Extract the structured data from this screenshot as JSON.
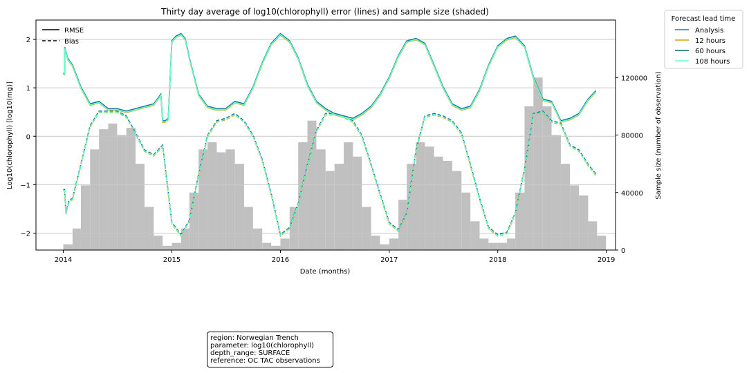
{
  "chart_data": {
    "type": "line",
    "title": "Thirty day average of log10(chlorophyll) error (lines) and sample size (shaded)",
    "xlabel": "Date (months)",
    "ylabel": "Log10(chlorophyll) [log10(mg)]",
    "y2label": "Sample size (number of observation)",
    "xlim": [
      "2013-10-01",
      "2019-02-01"
    ],
    "ylim": [
      -2.35,
      2.4
    ],
    "y2lim": [
      0,
      160000
    ],
    "x_ticks": [
      "2014",
      "2015",
      "2016",
      "2017",
      "2018",
      "2019"
    ],
    "y_ticks": [
      "2",
      "1",
      "0",
      "−1",
      "−2"
    ],
    "y_tick_values": [
      2,
      1,
      0,
      -1,
      -2
    ],
    "y2_ticks": [
      "120000",
      "80000",
      "40000",
      "0"
    ],
    "y2_tick_values": [
      120000,
      80000,
      40000,
      0
    ],
    "grid": "horizontal",
    "style_legend": {
      "position": "upper-left",
      "entries": [
        {
          "label": "RMSE",
          "style": "solid"
        },
        {
          "label": "Bias",
          "style": "dashed"
        }
      ]
    },
    "lead_legend": {
      "title": "Forecast lead time",
      "position": "outside-right",
      "entries": [
        {
          "label": "Analysis",
          "color": "#1f78d0"
        },
        {
          "label": "12 hours",
          "color": "#d4a000"
        },
        {
          "label": "60 hours",
          "color": "#006b6b"
        },
        {
          "label": "108 hours",
          "color": "#66ffcc"
        }
      ]
    },
    "rmse": {
      "x": [
        "2014-01-01",
        "2014-01-05",
        "2014-01-06",
        "2014-01-15",
        "2014-02-01",
        "2014-03-01",
        "2014-04-01",
        "2014-05-01",
        "2014-06-01",
        "2014-07-01",
        "2014-08-01",
        "2014-09-01",
        "2014-10-01",
        "2014-11-01",
        "2014-11-25",
        "2014-12-01",
        "2014-12-10",
        "2014-12-20",
        "2015-01-01",
        "2015-01-15",
        "2015-02-01",
        "2015-02-15",
        "2015-03-01",
        "2015-04-01",
        "2015-05-01",
        "2015-06-01",
        "2015-07-01",
        "2015-08-01",
        "2015-09-01",
        "2015-10-01",
        "2015-11-01",
        "2015-12-01",
        "2016-01-01",
        "2016-02-01",
        "2016-03-01",
        "2016-04-01",
        "2016-05-01",
        "2016-06-01",
        "2016-07-01",
        "2016-08-01",
        "2016-09-01",
        "2016-10-01",
        "2016-11-01",
        "2016-12-01",
        "2017-01-01",
        "2017-02-01",
        "2017-03-01",
        "2017-04-01",
        "2017-05-01",
        "2017-06-01",
        "2017-07-01",
        "2017-08-01",
        "2017-09-01",
        "2017-10-01",
        "2017-11-01",
        "2017-12-01",
        "2018-01-01",
        "2018-02-01",
        "2018-03-01",
        "2018-04-01",
        "2018-05-01",
        "2018-06-01",
        "2018-07-01",
        "2018-08-01",
        "2018-09-01",
        "2018-10-01",
        "2018-11-01",
        "2018-11-27"
      ],
      "y": [
        1.28,
        1.28,
        1.82,
        1.6,
        1.45,
        1.0,
        0.65,
        0.7,
        0.55,
        0.55,
        0.5,
        0.55,
        0.6,
        0.65,
        0.85,
        0.3,
        0.3,
        0.35,
        1.95,
        2.05,
        2.1,
        2.0,
        1.6,
        0.85,
        0.6,
        0.55,
        0.55,
        0.7,
        0.65,
        1.0,
        1.5,
        1.9,
        2.1,
        1.95,
        1.6,
        1.05,
        0.7,
        0.55,
        0.45,
        0.4,
        0.35,
        0.45,
        0.6,
        0.85,
        1.2,
        1.65,
        1.95,
        2.0,
        1.9,
        1.45,
        1.0,
        0.65,
        0.55,
        0.6,
        0.95,
        1.45,
        1.85,
        2.0,
        2.05,
        1.85,
        1.2,
        0.75,
        0.7,
        0.3,
        0.35,
        0.45,
        0.75,
        0.92
      ]
    },
    "bias": {
      "x": [
        "2014-01-01",
        "2014-01-05",
        "2014-01-10",
        "2014-01-20",
        "2014-02-01",
        "2014-03-01",
        "2014-04-01",
        "2014-05-01",
        "2014-06-01",
        "2014-07-01",
        "2014-08-01",
        "2014-09-01",
        "2014-10-01",
        "2014-11-01",
        "2014-12-01",
        "2015-01-01",
        "2015-02-01",
        "2015-03-01",
        "2015-04-01",
        "2015-05-01",
        "2015-06-01",
        "2015-07-01",
        "2015-08-01",
        "2015-09-01",
        "2015-10-01",
        "2015-11-01",
        "2015-12-01",
        "2016-01-01",
        "2016-02-01",
        "2016-03-01",
        "2016-04-01",
        "2016-05-01",
        "2016-06-01",
        "2016-07-01",
        "2016-08-01",
        "2016-09-01",
        "2016-10-01",
        "2016-11-01",
        "2016-12-01",
        "2017-01-01",
        "2017-02-01",
        "2017-03-01",
        "2017-04-01",
        "2017-05-01",
        "2017-06-01",
        "2017-07-01",
        "2017-08-01",
        "2017-09-01",
        "2017-10-01",
        "2017-11-01",
        "2017-12-01",
        "2018-01-01",
        "2018-02-01",
        "2018-03-01",
        "2018-04-01",
        "2018-05-01",
        "2018-06-01",
        "2018-07-01",
        "2018-08-01",
        "2018-09-01",
        "2018-10-01",
        "2018-11-01",
        "2018-11-27"
      ],
      "y": [
        -1.12,
        -1.12,
        -1.6,
        -1.35,
        -1.3,
        -0.6,
        0.2,
        0.5,
        0.5,
        0.5,
        0.4,
        0.05,
        -0.3,
        -0.4,
        -0.2,
        -1.8,
        -2.05,
        -1.75,
        -0.8,
        0.0,
        0.3,
        0.35,
        0.45,
        0.3,
        0.0,
        -0.5,
        -1.2,
        -2.05,
        -1.9,
        -1.4,
        -0.6,
        0.1,
        0.45,
        0.45,
        0.4,
        0.3,
        0.0,
        -0.6,
        -1.2,
        -1.8,
        -1.95,
        -1.6,
        -0.3,
        0.4,
        0.45,
        0.4,
        0.3,
        0.05,
        -0.6,
        -1.3,
        -1.9,
        -2.05,
        -2.0,
        -1.6,
        -0.7,
        0.45,
        0.5,
        0.3,
        0.25,
        -0.2,
        -0.3,
        -0.6,
        -0.8
      ]
    },
    "sample_size": {
      "x": [
        "2014-01-01",
        "2014-02-01",
        "2014-03-01",
        "2014-04-01",
        "2014-05-01",
        "2014-06-01",
        "2014-07-01",
        "2014-08-01",
        "2014-09-01",
        "2014-10-01",
        "2014-11-01",
        "2014-12-01",
        "2015-01-01",
        "2015-02-01",
        "2015-03-01",
        "2015-04-01",
        "2015-05-01",
        "2015-06-01",
        "2015-07-01",
        "2015-08-01",
        "2015-09-01",
        "2015-10-01",
        "2015-11-01",
        "2015-12-01",
        "2016-01-01",
        "2016-02-01",
        "2016-03-01",
        "2016-04-01",
        "2016-05-01",
        "2016-06-01",
        "2016-07-01",
        "2016-08-01",
        "2016-09-01",
        "2016-10-01",
        "2016-11-01",
        "2016-12-01",
        "2017-01-01",
        "2017-02-01",
        "2017-03-01",
        "2017-04-01",
        "2017-05-01",
        "2017-06-01",
        "2017-07-01",
        "2017-08-01",
        "2017-09-01",
        "2017-10-01",
        "2017-11-01",
        "2017-12-01",
        "2018-01-01",
        "2018-02-01",
        "2018-03-01",
        "2018-04-01",
        "2018-05-01",
        "2018-06-01",
        "2018-07-01",
        "2018-08-01",
        "2018-09-01",
        "2018-10-01",
        "2018-11-01",
        "2018-12-01"
      ],
      "y": [
        4000,
        15000,
        45000,
        70000,
        84000,
        88000,
        80000,
        85000,
        60000,
        30000,
        10000,
        3000,
        5000,
        15000,
        40000,
        70000,
        75000,
        68000,
        70000,
        60000,
        30000,
        15000,
        5000,
        3000,
        8000,
        30000,
        75000,
        90000,
        70000,
        55000,
        60000,
        75000,
        65000,
        30000,
        10000,
        4000,
        8000,
        35000,
        60000,
        75000,
        72000,
        65000,
        62000,
        55000,
        40000,
        20000,
        8000,
        5000,
        5000,
        8000,
        40000,
        100000,
        120000,
        100000,
        80000,
        60000,
        45000,
        38000,
        20000,
        10000
      ]
    }
  },
  "info_box": {
    "region": "region: Norwegian Trench",
    "parameter": "parameter: log10(chlorophyll)",
    "depth_range": "depth_range: SURFACE",
    "reference": "reference: OC TAC observations"
  }
}
